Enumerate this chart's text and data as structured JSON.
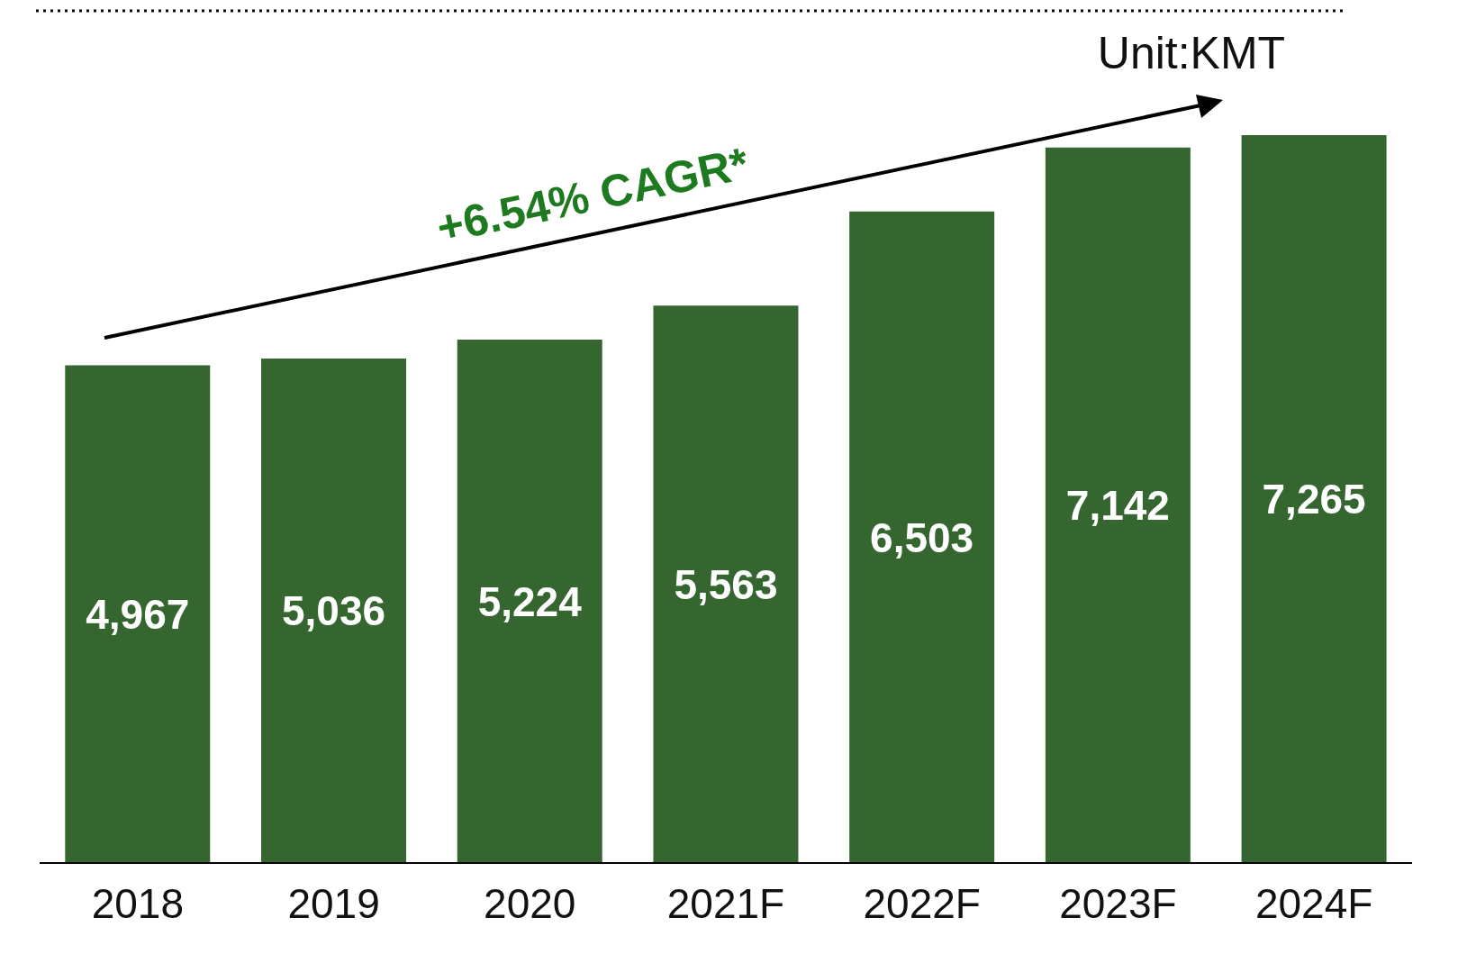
{
  "chart_data": {
    "type": "bar",
    "categories": [
      "2018",
      "2019",
      "2020",
      "2021F",
      "2022F",
      "2023F",
      "2024F"
    ],
    "values": [
      4967,
      5036,
      5224,
      5563,
      6503,
      7142,
      7265
    ],
    "value_labels": [
      "4,967",
      "5,036",
      "5,224",
      "5,563",
      "6,503",
      "7,142",
      "7,265"
    ],
    "color": "#356630",
    "annotations": [
      "+6.54% CAGR*",
      "Unit:KMT"
    ],
    "grid": false,
    "legend": false
  }
}
